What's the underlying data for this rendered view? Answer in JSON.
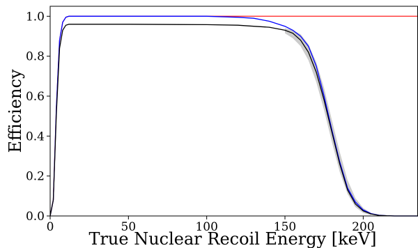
{
  "chart_data": {
    "type": "line",
    "title": "",
    "xlabel": "True Nuclear Recoil Energy [keV]",
    "ylabel": "Efficiency",
    "xlim": [
      0,
      235
    ],
    "ylim": [
      0.0,
      1.05
    ],
    "x_ticks": [
      0,
      50,
      100,
      150,
      200
    ],
    "x_tick_labels": [
      "0",
      "50",
      "100",
      "150",
      "200"
    ],
    "y_ticks": [
      0.0,
      0.2,
      0.4,
      0.6,
      0.8,
      1.0
    ],
    "y_tick_labels": [
      "0.0",
      "0.2",
      "0.4",
      "0.6",
      "0.8",
      "1.0"
    ],
    "grid": false,
    "series": [
      {
        "color": "#ff3333",
        "x": [
          0,
          2,
          4,
          6,
          8,
          10,
          12,
          15,
          20,
          50,
          100,
          150,
          200,
          235
        ],
        "y": [
          0.0,
          0.08,
          0.55,
          0.88,
          0.97,
          0.995,
          1.0,
          1.0,
          1.0,
          1.0,
          1.0,
          1.0,
          1.0,
          1.0
        ]
      },
      {
        "color": "#0000ff",
        "x": [
          0,
          2,
          4,
          6,
          8,
          10,
          12,
          15,
          20,
          50,
          100,
          120,
          130,
          140,
          150,
          155,
          160,
          165,
          170,
          175,
          180,
          185,
          190,
          195,
          200,
          205,
          210,
          215,
          220,
          235
        ],
        "y": [
          0.0,
          0.08,
          0.55,
          0.88,
          0.97,
          0.995,
          1.0,
          1.0,
          1.0,
          1.0,
          1.0,
          0.995,
          0.99,
          0.975,
          0.95,
          0.93,
          0.9,
          0.85,
          0.75,
          0.6,
          0.43,
          0.27,
          0.14,
          0.07,
          0.03,
          0.012,
          0.004,
          0.001,
          0.0,
          0.0
        ]
      },
      {
        "color": "#000000",
        "x": [
          0,
          2,
          4,
          6,
          8,
          10,
          12,
          15,
          20,
          50,
          100,
          120,
          130,
          140,
          150,
          155,
          160,
          165,
          170,
          175,
          180,
          185,
          190,
          195,
          200,
          205,
          210,
          215,
          220,
          235
        ],
        "y": [
          0.0,
          0.08,
          0.52,
          0.84,
          0.93,
          0.955,
          0.96,
          0.96,
          0.96,
          0.96,
          0.958,
          0.955,
          0.95,
          0.945,
          0.93,
          0.915,
          0.88,
          0.82,
          0.72,
          0.58,
          0.42,
          0.26,
          0.13,
          0.06,
          0.025,
          0.01,
          0.003,
          0.001,
          0.0,
          0.0
        ]
      }
    ],
    "band": {
      "color": "#cccccc",
      "x": [
        150,
        155,
        160,
        165,
        170,
        175,
        180,
        185,
        190,
        195,
        200,
        205
      ],
      "lower": [
        0.915,
        0.89,
        0.85,
        0.78,
        0.67,
        0.53,
        0.37,
        0.22,
        0.11,
        0.045,
        0.015,
        0.004
      ],
      "upper": [
        0.94,
        0.93,
        0.91,
        0.86,
        0.77,
        0.64,
        0.48,
        0.32,
        0.18,
        0.09,
        0.04,
        0.015
      ]
    }
  }
}
